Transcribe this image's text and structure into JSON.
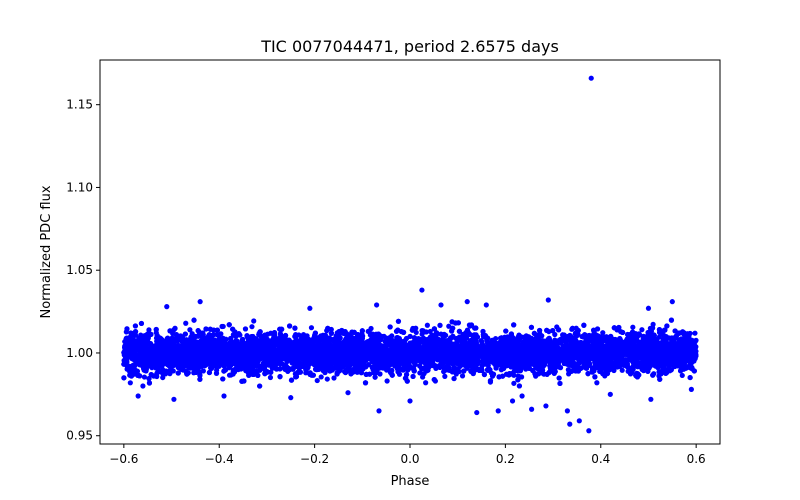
{
  "chart_data": {
    "type": "scatter",
    "title": "TIC 0077044471, period 2.6575 days",
    "xlabel": "Phase",
    "ylabel": "Normalized PDC flux",
    "xlim": [
      -0.65,
      0.65
    ],
    "ylim": [
      0.945,
      1.177
    ],
    "xticks": [
      -0.6,
      -0.4,
      -0.2,
      0.0,
      0.2,
      0.4,
      0.6
    ],
    "xtick_labels": [
      "−0.6",
      "−0.4",
      "−0.2",
      "0.0",
      "0.2",
      "0.4",
      "0.6"
    ],
    "yticks": [
      0.95,
      1.0,
      1.05,
      1.1,
      1.15
    ],
    "ytick_labels": [
      "0.95",
      "1.00",
      "1.05",
      "1.10",
      "1.15"
    ],
    "grid": false,
    "series": [
      {
        "name": "flux",
        "color": "#0000ff",
        "band": {
          "x_range": [
            -0.6,
            0.6
          ],
          "center": 1.0,
          "core_halfwidth": 0.006,
          "outer_halfwidth": 0.02,
          "n_points": 9000
        },
        "points": [
          {
            "x": 0.38,
            "y": 1.166
          },
          {
            "x": 0.025,
            "y": 1.038
          },
          {
            "x": 0.29,
            "y": 1.032
          },
          {
            "x": -0.44,
            "y": 1.031
          },
          {
            "x": 0.12,
            "y": 1.031
          },
          {
            "x": 0.55,
            "y": 1.031
          },
          {
            "x": -0.07,
            "y": 1.029
          },
          {
            "x": -0.51,
            "y": 1.028
          },
          {
            "x": -0.21,
            "y": 1.027
          },
          {
            "x": 0.5,
            "y": 1.027
          },
          {
            "x": 0.065,
            "y": 1.029
          },
          {
            "x": 0.16,
            "y": 1.029
          },
          {
            "x": 0.375,
            "y": 0.953
          },
          {
            "x": 0.335,
            "y": 0.957
          },
          {
            "x": 0.355,
            "y": 0.959
          },
          {
            "x": 0.14,
            "y": 0.964
          },
          {
            "x": 0.185,
            "y": 0.965
          },
          {
            "x": -0.065,
            "y": 0.965
          },
          {
            "x": 0.33,
            "y": 0.965
          },
          {
            "x": 0.255,
            "y": 0.966
          },
          {
            "x": 0.285,
            "y": 0.968
          },
          {
            "x": 0.0,
            "y": 0.971
          },
          {
            "x": -0.495,
            "y": 0.972
          },
          {
            "x": 0.215,
            "y": 0.971
          },
          {
            "x": 0.505,
            "y": 0.972
          },
          {
            "x": -0.57,
            "y": 0.974
          },
          {
            "x": -0.39,
            "y": 0.974
          },
          {
            "x": -0.25,
            "y": 0.973
          },
          {
            "x": 0.235,
            "y": 0.974
          },
          {
            "x": 0.42,
            "y": 0.975
          },
          {
            "x": -0.13,
            "y": 0.976
          },
          {
            "x": 0.59,
            "y": 0.978
          }
        ]
      }
    ]
  }
}
